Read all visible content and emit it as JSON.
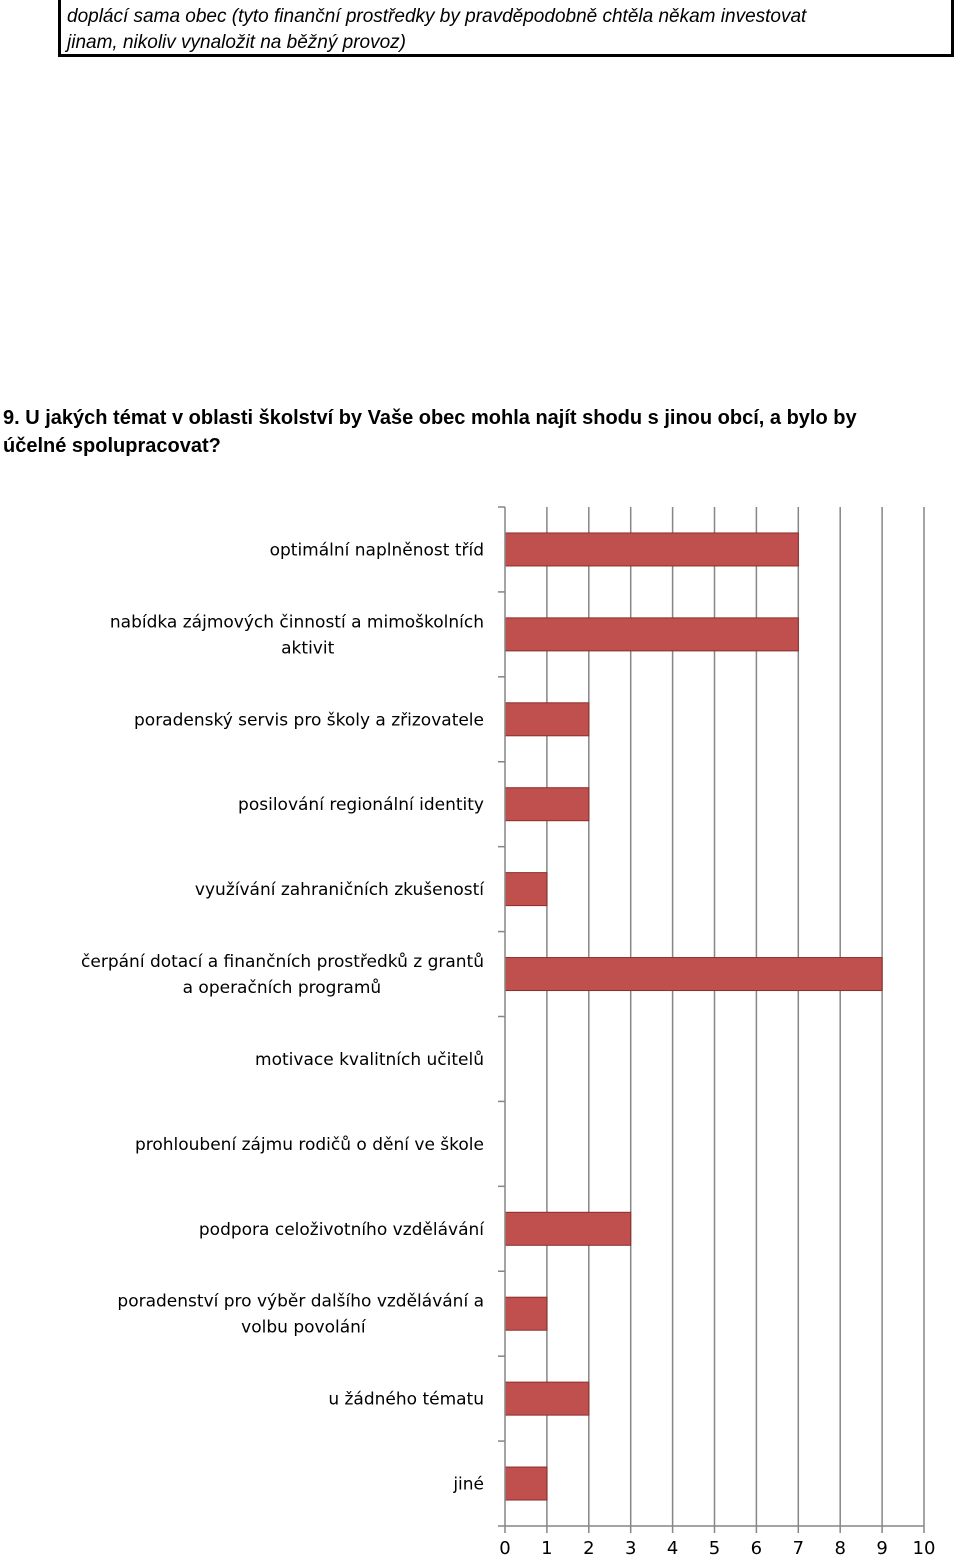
{
  "note": {
    "line1": "doplácí sama obec (tyto finanční prostředky by pravděpodobně chtěla někam investovat",
    "line2": "jinam, nikoliv vynaložit na běžný provoz)"
  },
  "question": {
    "line1": "9. U jakých témat v oblasti školství by Vaše obec mohla najít shodu s jinou obcí, a bylo by",
    "line2": "účelné spolupracovat?"
  },
  "chart_data": {
    "type": "bar",
    "orientation": "horizontal",
    "categories": [
      [
        "optimální naplněnost tříd"
      ],
      [
        "nabídka zájmových činností a mimoškolních",
        "aktivit"
      ],
      [
        "poradenský servis pro školy a zřizovatele"
      ],
      [
        "posilování regionální identity"
      ],
      [
        "využívání zahraničních zkušeností"
      ],
      [
        "čerpání dotací a finančních prostředků z grantů",
        "a operačních programů"
      ],
      [
        "motivace kvalitních učitelů"
      ],
      [
        "prohloubení zájmu rodičů o dění ve škole"
      ],
      [
        "podpora celoživotního vzdělávání"
      ],
      [
        "poradenství pro výběr dalšího vzdělávání a",
        "volbu povolání"
      ],
      [
        "u žádného tématu"
      ],
      [
        "jiné"
      ]
    ],
    "values": [
      7,
      7,
      2,
      2,
      1,
      9,
      0,
      0,
      3,
      1,
      2,
      1
    ],
    "xlim": [
      0,
      10
    ],
    "xticks": [
      "0",
      "1",
      "2",
      "3",
      "4",
      "5",
      "6",
      "7",
      "8",
      "9",
      "10"
    ],
    "grid": true,
    "bar_color": "#C0504D",
    "bar_border": "#8B2E2C",
    "grid_color": "#868686"
  }
}
